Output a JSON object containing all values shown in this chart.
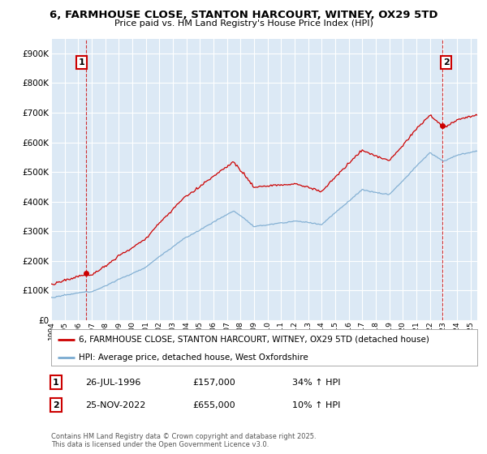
{
  "title": "6, FARMHOUSE CLOSE, STANTON HARCOURT, WITNEY, OX29 5TD",
  "subtitle": "Price paid vs. HM Land Registry's House Price Index (HPI)",
  "red_label": "6, FARMHOUSE CLOSE, STANTON HARCOURT, WITNEY, OX29 5TD (detached house)",
  "blue_label": "HPI: Average price, detached house, West Oxfordshire",
  "annotation1_date": "26-JUL-1996",
  "annotation1_price": "£157,000",
  "annotation1_hpi": "34% ↑ HPI",
  "annotation2_date": "25-NOV-2022",
  "annotation2_price": "£655,000",
  "annotation2_hpi": "10% ↑ HPI",
  "footnote": "Contains HM Land Registry data © Crown copyright and database right 2025.\nThis data is licensed under the Open Government Licence v3.0.",
  "ylim": [
    0,
    950000
  ],
  "xlim_start": 1994.25,
  "xlim_end": 2025.5,
  "red_color": "#cc0000",
  "blue_color": "#7aaad0",
  "sale1_x": 1996.57,
  "sale1_y": 157000,
  "sale2_x": 2022.9,
  "sale2_y": 655000,
  "background_color": "#ffffff",
  "plot_bg_color": "#dce9f5",
  "grid_color": "#ffffff"
}
